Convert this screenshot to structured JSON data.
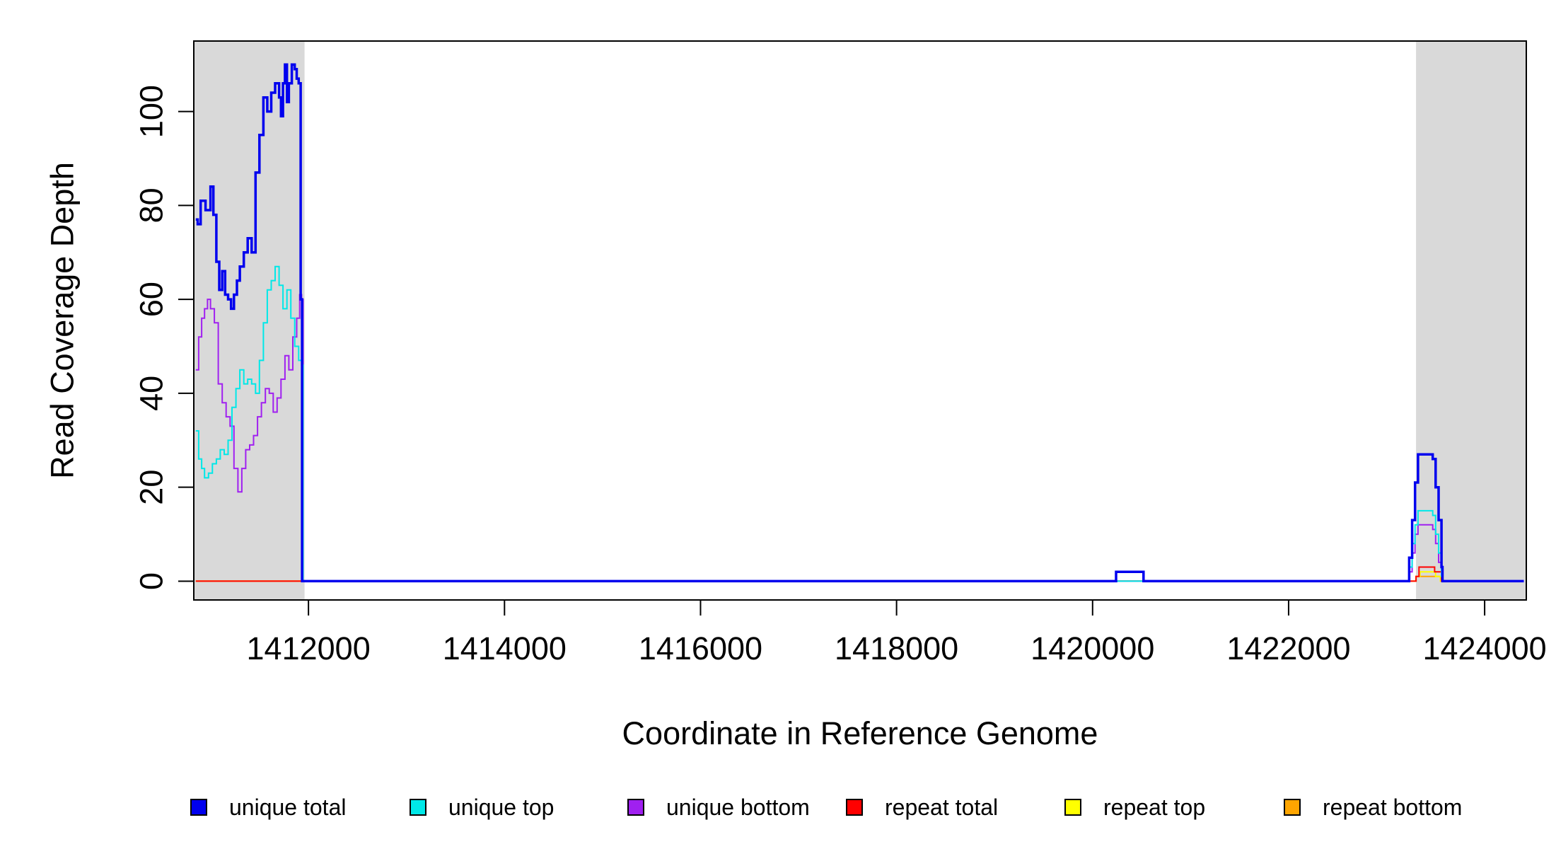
{
  "chart_data": {
    "type": "line",
    "title": "",
    "xlabel": "Coordinate in Reference Genome",
    "ylabel": "Read Coverage Depth",
    "xlim": [
      1410830,
      1424425
    ],
    "ylim": [
      -4,
      115
    ],
    "x_ticks": [
      1412000,
      1414000,
      1416000,
      1418000,
      1420000,
      1422000,
      1424000
    ],
    "x_tick_labels": [
      "1412000",
      "1414000",
      "1416000",
      "1418000",
      "1420000",
      "1422000",
      "1424000"
    ],
    "y_ticks": [
      0,
      20,
      40,
      60,
      80,
      100
    ],
    "y_tick_labels": [
      "0",
      "20",
      "40",
      "60",
      "80",
      "100"
    ],
    "grid": false,
    "legend_position": "bottom",
    "shaded_regions": [
      {
        "x": [
          1410830,
          1411960
        ],
        "color": "#d9d9d9"
      },
      {
        "x": [
          1423300,
          1424425
        ],
        "color": "#d9d9d9"
      }
    ],
    "series": [
      {
        "name": "unique total",
        "color": "#0000ee",
        "x": [
          1410850,
          1410870,
          1410900,
          1410950,
          1411000,
          1411030,
          1411060,
          1411090,
          1411120,
          1411150,
          1411180,
          1411210,
          1411240,
          1411270,
          1411300,
          1411340,
          1411380,
          1411420,
          1411460,
          1411500,
          1411540,
          1411580,
          1411620,
          1411660,
          1411700,
          1411720,
          1411740,
          1411760,
          1411780,
          1411800,
          1411830,
          1411860,
          1411880,
          1411900,
          1411920,
          1411935,
          1411945,
          1412000,
          1420230,
          1420240,
          1420510,
          1420520,
          1423200,
          1423230,
          1423260,
          1423290,
          1423320,
          1423370,
          1423470,
          1423500,
          1423530,
          1423560,
          1423570,
          1424400
        ],
        "y": [
          77,
          76,
          81,
          79,
          84,
          78,
          68,
          62,
          66,
          61,
          60,
          58,
          61,
          64,
          67,
          70,
          73,
          70,
          87,
          95,
          103,
          100,
          104,
          106,
          103,
          99,
          106,
          110,
          102,
          106,
          110,
          109,
          107,
          106,
          60,
          0,
          0,
          0,
          0,
          2,
          2,
          0,
          0,
          5,
          13,
          21,
          27,
          27,
          26,
          20,
          13,
          3,
          0,
          0
        ]
      },
      {
        "name": "unique top",
        "color": "#00e8e8",
        "x": [
          1410850,
          1410880,
          1410910,
          1410940,
          1410980,
          1411020,
          1411060,
          1411100,
          1411140,
          1411180,
          1411220,
          1411260,
          1411300,
          1411340,
          1411380,
          1411420,
          1411460,
          1411500,
          1411540,
          1411580,
          1411620,
          1411660,
          1411700,
          1411740,
          1411780,
          1411820,
          1411860,
          1411900,
          1411930,
          1411945,
          1412000,
          1423200,
          1423230,
          1423260,
          1423290,
          1423320,
          1423370,
          1423470,
          1423500,
          1423530,
          1423560,
          1423570,
          1424400
        ],
        "y": [
          32,
          26,
          24,
          22,
          23,
          25,
          26,
          28,
          27,
          30,
          37,
          41,
          45,
          42,
          43,
          42,
          40,
          47,
          55,
          62,
          64,
          67,
          63,
          58,
          62,
          56,
          50,
          47,
          46,
          0,
          0,
          0,
          3,
          8,
          12,
          15,
          15,
          14,
          10,
          6,
          1,
          0,
          0
        ]
      },
      {
        "name": "unique bottom",
        "color": "#a020f0",
        "x": [
          1410850,
          1410880,
          1410910,
          1410940,
          1410970,
          1411000,
          1411040,
          1411080,
          1411120,
          1411160,
          1411200,
          1411240,
          1411280,
          1411320,
          1411360,
          1411400,
          1411440,
          1411480,
          1411520,
          1411560,
          1411600,
          1411640,
          1411680,
          1411720,
          1411760,
          1411800,
          1411840,
          1411880,
          1411910,
          1411930,
          1411945,
          1412000,
          1423200,
          1423230,
          1423260,
          1423290,
          1423320,
          1423370,
          1423470,
          1423500,
          1423530,
          1423560,
          1423570,
          1424400
        ],
        "y": [
          45,
          52,
          56,
          58,
          60,
          58,
          55,
          42,
          38,
          35,
          33,
          24,
          19,
          24,
          28,
          29,
          31,
          35,
          38,
          41,
          40,
          36,
          39,
          43,
          48,
          45,
          52,
          56,
          61,
          60,
          0,
          0,
          0,
          2,
          6,
          10,
          12,
          12,
          11,
          8,
          4,
          1,
          0,
          0
        ]
      },
      {
        "name": "repeat total",
        "color": "#ff0000",
        "x": [
          1410850,
          1423250,
          1423300,
          1423330,
          1423360,
          1423460,
          1423490,
          1423540,
          1423560,
          1424400
        ],
        "y": [
          0,
          0,
          1,
          3,
          3,
          3,
          2,
          2,
          0,
          0
        ]
      },
      {
        "name": "repeat top",
        "color": "#ffff00",
        "x": [
          1410850,
          1423260,
          1423300,
          1423340,
          1423450,
          1423500,
          1423550,
          1424400
        ],
        "y": [
          0,
          0,
          1,
          2,
          2,
          1,
          0,
          0
        ]
      },
      {
        "name": "repeat bottom",
        "color": "#ffa500",
        "x": [
          1410850,
          1423260,
          1423300,
          1423340,
          1423450,
          1423500,
          1423550,
          1424400
        ],
        "y": [
          0,
          0,
          1,
          1,
          1,
          1,
          0,
          0
        ]
      }
    ]
  }
}
